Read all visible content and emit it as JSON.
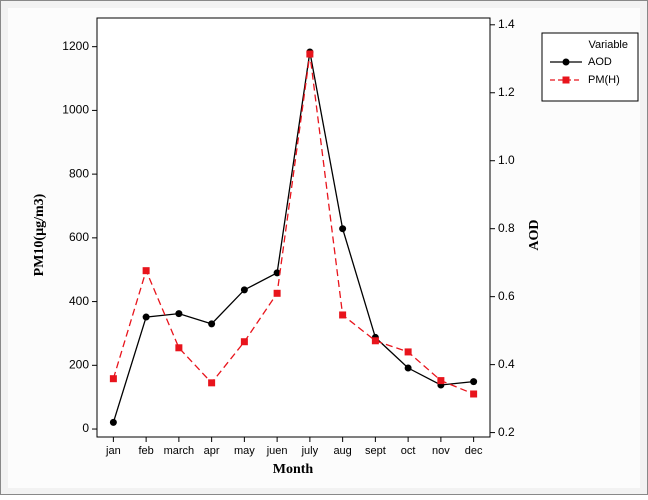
{
  "chart_data": {
    "type": "line",
    "xlabel": "Month",
    "ylabel": "PM10(µg/m3)",
    "y2label": "AOD",
    "categories": [
      "jan",
      "feb",
      "march",
      "apr",
      "may",
      "juen",
      "july",
      "aug",
      "sept",
      "oct",
      "nov",
      "dec"
    ],
    "series": [
      {
        "name": "AOD",
        "color": "#000000",
        "axis": "y2",
        "marker": "circle",
        "dash": false,
        "values": [
          0.23,
          0.54,
          0.55,
          0.52,
          0.62,
          0.67,
          1.32,
          0.8,
          0.48,
          0.39,
          0.34,
          0.35
        ]
      },
      {
        "name": "PM(H)",
        "color": "#e8141c",
        "marker": "square",
        "dash": true,
        "values": [
          158,
          497,
          255,
          145,
          274,
          426,
          1177,
          358,
          277,
          242,
          152,
          110
        ]
      }
    ],
    "ylim": [
      -25,
      1290
    ],
    "yticks": [
      0,
      200,
      400,
      600,
      800,
      1000,
      1200
    ],
    "y2lim": [
      0.187,
      1.42
    ],
    "y2ticks": [
      0.2,
      0.4,
      0.6,
      0.8,
      {
        "value": 1,
        "label": "1.0"
      },
      1.2,
      1.4
    ],
    "legend": {
      "title": "Variable",
      "position": "outside-right"
    }
  }
}
